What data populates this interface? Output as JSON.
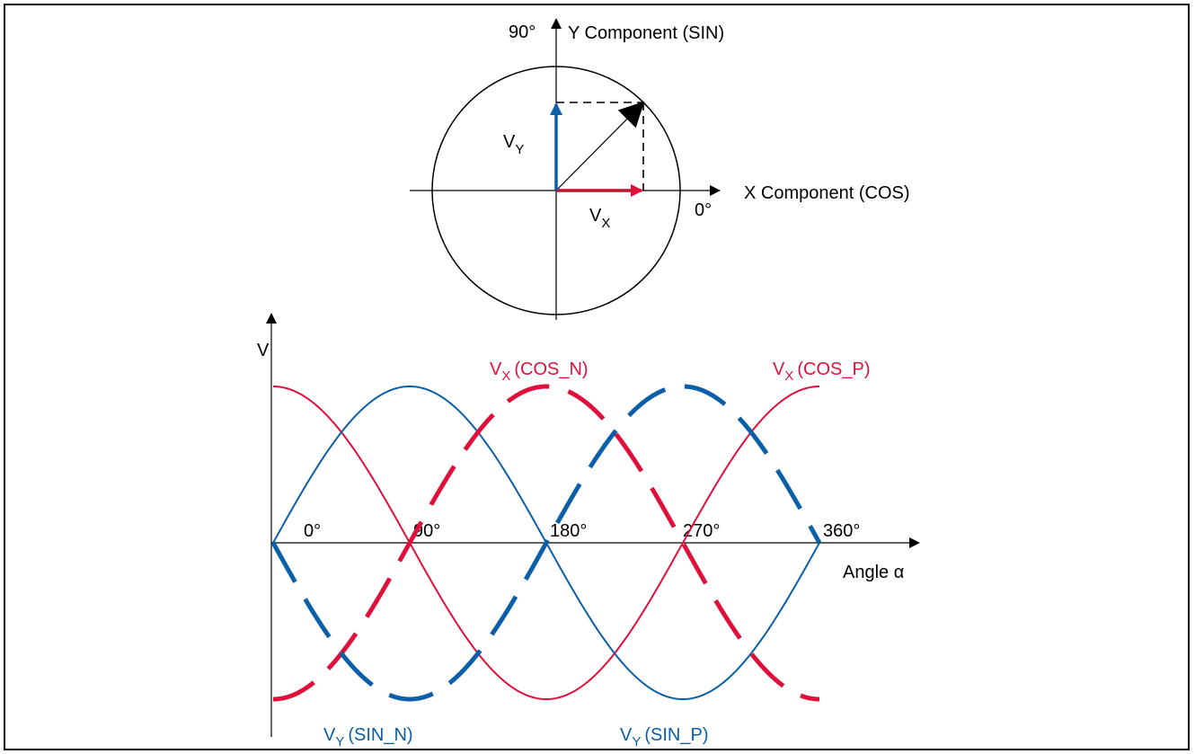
{
  "colors": {
    "cos": "#e0103c",
    "sin": "#0a5fa8",
    "axis": "#000000"
  },
  "circle": {
    "y_axis_label": "Y Component (SIN)",
    "y_axis_angle": "90°",
    "x_axis_label": "X Component (COS)",
    "x_axis_angle": "0°",
    "vy_main": "V",
    "vy_sub": "Y",
    "vx_main": "V",
    "vx_sub": "X"
  },
  "waveform": {
    "v_axis_label": "V",
    "x_axis_label": "Angle α",
    "ticks": [
      "0°",
      "90°",
      "180°",
      "270°",
      "360°"
    ],
    "tick_angles": [
      0,
      90,
      180,
      270,
      360
    ],
    "cos_n_main": "V",
    "cos_n_sub": "X",
    "cos_n_name": "(COS_N)",
    "cos_p_main": "V",
    "cos_p_sub": "X",
    "cos_p_name": "(COS_P)",
    "sin_n_main": "V",
    "sin_n_sub": "Y",
    "sin_n_name": "(SIN_N)",
    "sin_p_main": "V",
    "sin_p_sub": "Y",
    "sin_p_name": "(SIN_P)"
  }
}
